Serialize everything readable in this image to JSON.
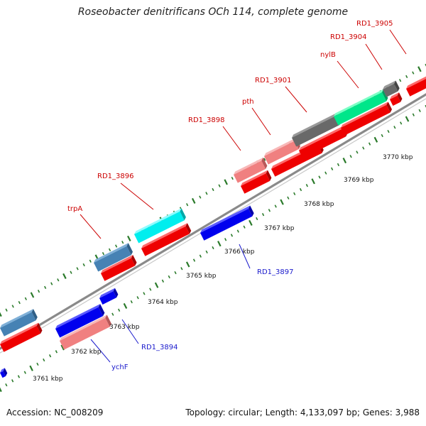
{
  "title": "Roseobacter denitrificans OCh 114, complete genome",
  "footer": {
    "accession": "Accession: NC_008209",
    "summary": "Topology: circular; Length: 4,133,097 bp; Genes: 3,988"
  },
  "colors": {
    "forward_label": "#cc0000",
    "reverse_label": "#1a1acc",
    "tick": "#2a7a2a",
    "backbone": "#8a8a8a"
  },
  "kbp_labels": [
    "3761 kbp",
    "3762 kbp",
    "3763 kbp",
    "3764 kbp",
    "3765 kbp",
    "3766 kbp",
    "3767 kbp",
    "3768 kbp",
    "3769 kbp",
    "3770 kbp"
  ],
  "gene_labels": [
    {
      "text": "trpA",
      "strand": "forward"
    },
    {
      "text": "RD1_3896",
      "strand": "forward"
    },
    {
      "text": "RD1_3898",
      "strand": "forward"
    },
    {
      "text": "pth",
      "strand": "forward"
    },
    {
      "text": "RD1_3901",
      "strand": "forward"
    },
    {
      "text": "nylB",
      "strand": "forward"
    },
    {
      "text": "RD1_3904",
      "strand": "forward"
    },
    {
      "text": "RD1_3905",
      "strand": "forward"
    },
    {
      "text": "RD1_3897",
      "strand": "reverse"
    },
    {
      "text": "RD1_3894",
      "strand": "reverse"
    },
    {
      "text": "ychF",
      "strand": "reverse"
    }
  ],
  "features": [
    {
      "track": "orf-upper",
      "color": "steelblue"
    },
    {
      "track": "cds-forward",
      "color": "red"
    },
    {
      "track": "orf-upper",
      "color": "steelblue"
    },
    {
      "track": "cds-forward",
      "color": "red"
    },
    {
      "track": "orf-upper",
      "color": "cyan"
    },
    {
      "track": "cds-forward",
      "color": "red"
    },
    {
      "track": "orf-upper",
      "color": "lightcoral"
    },
    {
      "track": "cds-forward",
      "color": "red"
    },
    {
      "track": "orf-upper",
      "color": "lightcoral"
    },
    {
      "track": "cds-forward",
      "color": "red"
    },
    {
      "track": "orf-upper",
      "color": "dimgray"
    },
    {
      "track": "cds-forward",
      "color": "red"
    },
    {
      "track": "orf-upper",
      "color": "springgreen"
    },
    {
      "track": "cds-forward",
      "color": "red"
    },
    {
      "track": "orf-upper",
      "color": "dimgray"
    },
    {
      "track": "cds-forward",
      "color": "red"
    },
    {
      "track": "cds-forward",
      "color": "red"
    },
    {
      "track": "cds-reverse",
      "color": "blue"
    },
    {
      "track": "cds-reverse",
      "color": "blue"
    },
    {
      "track": "cds-reverse",
      "color": "blue"
    },
    {
      "track": "cds-reverse",
      "color": "blue"
    },
    {
      "track": "orf-lower",
      "color": "lightcoral"
    }
  ]
}
